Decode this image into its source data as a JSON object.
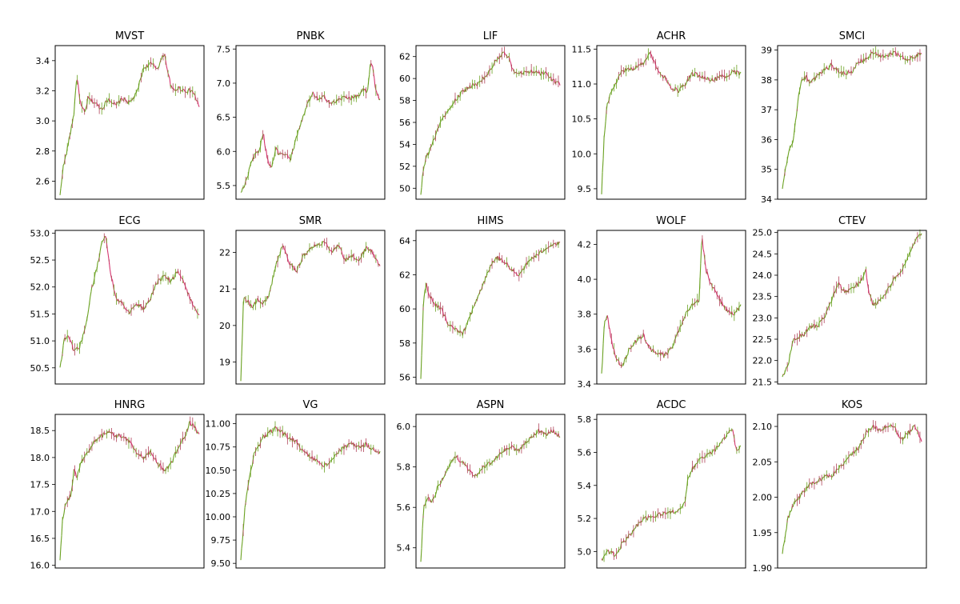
{
  "style": {
    "up_color": "#6aa121",
    "down_color": "#d4356e",
    "mid_color": "#b0435a",
    "frame_color": "#000000"
  },
  "chart_data": [
    {
      "type": "line",
      "title": "MVST",
      "ylim": [
        2.48,
        3.5
      ],
      "yticks": [
        2.6,
        2.8,
        3.0,
        3.2,
        3.4
      ],
      "tick_labels": [
        "2.6",
        "2.8",
        "3.0",
        "3.2",
        "3.4"
      ],
      "x": [
        0,
        0.02,
        0.05,
        0.08,
        0.1,
        0.12,
        0.15,
        0.18,
        0.2,
        0.25,
        0.3,
        0.35,
        0.4,
        0.45,
        0.5,
        0.55,
        0.6,
        0.65,
        0.7,
        0.75,
        0.78,
        0.8,
        0.82,
        0.85,
        0.9,
        0.95,
        1.0
      ],
      "values": [
        2.5,
        2.68,
        2.8,
        2.95,
        3.05,
        3.3,
        3.1,
        3.05,
        3.15,
        3.12,
        3.08,
        3.15,
        3.1,
        3.15,
        3.12,
        3.18,
        3.35,
        3.38,
        3.35,
        3.45,
        3.3,
        3.22,
        3.2,
        3.22,
        3.2,
        3.2,
        3.1
      ]
    },
    {
      "type": "line",
      "title": "PNBK",
      "ylim": [
        5.3,
        7.55
      ],
      "yticks": [
        5.5,
        6.0,
        6.5,
        7.0,
        7.5
      ],
      "tick_labels": [
        "5.5",
        "6.0",
        "6.5",
        "7.0",
        "7.5"
      ],
      "x": [
        0,
        0.03,
        0.07,
        0.1,
        0.13,
        0.16,
        0.19,
        0.22,
        0.25,
        0.28,
        0.32,
        0.36,
        0.4,
        0.44,
        0.48,
        0.52,
        0.56,
        0.6,
        0.65,
        0.7,
        0.75,
        0.8,
        0.85,
        0.88,
        0.91,
        0.93,
        0.95,
        0.97,
        1.0
      ],
      "values": [
        5.4,
        5.5,
        5.8,
        5.95,
        6.0,
        6.28,
        5.9,
        5.75,
        6.05,
        5.95,
        5.95,
        5.9,
        6.2,
        6.45,
        6.7,
        6.85,
        6.75,
        6.8,
        6.7,
        6.75,
        6.8,
        6.78,
        6.82,
        6.9,
        6.85,
        7.3,
        7.2,
        6.9,
        6.75
      ]
    },
    {
      "type": "line",
      "title": "LIF",
      "ylim": [
        49.0,
        63.0
      ],
      "yticks": [
        50,
        52,
        54,
        56,
        58,
        60,
        62
      ],
      "tick_labels": [
        "50",
        "52",
        "54",
        "56",
        "58",
        "60",
        "62"
      ],
      "x": [
        0,
        0.02,
        0.04,
        0.08,
        0.12,
        0.16,
        0.2,
        0.25,
        0.3,
        0.35,
        0.4,
        0.45,
        0.5,
        0.55,
        0.6,
        0.63,
        0.66,
        0.7,
        0.75,
        0.8,
        0.85,
        0.9,
        0.95,
        1.0
      ],
      "values": [
        49.5,
        52.0,
        52.8,
        54.0,
        55.2,
        56.5,
        57.2,
        58.0,
        58.8,
        59.2,
        59.5,
        60.0,
        60.8,
        61.8,
        62.3,
        62.0,
        60.8,
        60.5,
        60.5,
        60.7,
        60.4,
        60.5,
        59.8,
        59.5
      ]
    },
    {
      "type": "line",
      "title": "ACHR",
      "ylim": [
        9.35,
        11.55
      ],
      "yticks": [
        9.5,
        10.0,
        10.5,
        11.0,
        11.5
      ],
      "tick_labels": [
        "9.5",
        "10.0",
        "10.5",
        "11.0",
        "11.5"
      ],
      "x": [
        0,
        0.02,
        0.04,
        0.07,
        0.1,
        0.13,
        0.16,
        0.2,
        0.25,
        0.3,
        0.35,
        0.4,
        0.45,
        0.5,
        0.55,
        0.6,
        0.65,
        0.7,
        0.75,
        0.8,
        0.85,
        0.9,
        0.95,
        1.0
      ],
      "values": [
        9.45,
        10.3,
        10.7,
        10.9,
        11.0,
        11.15,
        11.2,
        11.2,
        11.25,
        11.3,
        11.45,
        11.2,
        11.1,
        10.95,
        10.9,
        11.0,
        11.15,
        11.12,
        11.1,
        11.05,
        11.1,
        11.12,
        11.18,
        11.15
      ]
    },
    {
      "type": "line",
      "title": "SMCI",
      "ylim": [
        34.0,
        39.15
      ],
      "yticks": [
        34,
        35,
        36,
        37,
        38,
        39
      ],
      "tick_labels": [
        "34",
        "35",
        "36",
        "37",
        "38",
        "39"
      ],
      "x": [
        0,
        0.02,
        0.05,
        0.08,
        0.1,
        0.12,
        0.14,
        0.17,
        0.2,
        0.25,
        0.3,
        0.35,
        0.4,
        0.45,
        0.5,
        0.55,
        0.6,
        0.65,
        0.7,
        0.75,
        0.8,
        0.85,
        0.9,
        0.95,
        1.0
      ],
      "values": [
        34.3,
        35.0,
        35.6,
        36.0,
        36.8,
        37.6,
        38.0,
        38.1,
        37.9,
        38.1,
        38.3,
        38.5,
        38.3,
        38.2,
        38.3,
        38.6,
        38.7,
        38.9,
        38.8,
        38.8,
        38.9,
        38.8,
        38.7,
        38.8,
        38.9
      ]
    },
    {
      "type": "line",
      "title": "ECG",
      "ylim": [
        50.2,
        53.05
      ],
      "yticks": [
        50.5,
        51.0,
        51.5,
        52.0,
        52.5,
        53.0
      ],
      "tick_labels": [
        "50.5",
        "51.0",
        "51.5",
        "52.0",
        "52.5",
        "53.0"
      ],
      "x": [
        0,
        0.03,
        0.06,
        0.1,
        0.14,
        0.18,
        0.2,
        0.22,
        0.26,
        0.3,
        0.33,
        0.36,
        0.4,
        0.45,
        0.5,
        0.55,
        0.6,
        0.65,
        0.7,
        0.75,
        0.8,
        0.85,
        0.9,
        0.95,
        1.0
      ],
      "values": [
        50.5,
        51.0,
        51.1,
        50.8,
        50.9,
        51.2,
        51.5,
        51.9,
        52.3,
        52.8,
        52.95,
        52.3,
        51.8,
        51.7,
        51.5,
        51.7,
        51.6,
        51.8,
        52.1,
        52.2,
        52.1,
        52.3,
        52.0,
        51.7,
        51.5
      ]
    },
    {
      "type": "line",
      "title": "SMR",
      "ylim": [
        18.4,
        22.6
      ],
      "yticks": [
        19,
        20,
        21,
        22
      ],
      "tick_labels": [
        "19",
        "20",
        "21",
        "22"
      ],
      "x": [
        0,
        0.02,
        0.04,
        0.08,
        0.12,
        0.16,
        0.2,
        0.25,
        0.3,
        0.35,
        0.4,
        0.45,
        0.5,
        0.55,
        0.6,
        0.65,
        0.7,
        0.75,
        0.8,
        0.85,
        0.9,
        0.95,
        1.0
      ],
      "values": [
        18.5,
        20.8,
        20.7,
        20.5,
        20.7,
        20.6,
        20.8,
        21.6,
        22.2,
        21.7,
        21.5,
        21.9,
        22.1,
        22.2,
        22.3,
        22.0,
        22.2,
        21.8,
        21.9,
        21.8,
        22.1,
        22.0,
        21.6
      ]
    },
    {
      "type": "line",
      "title": "HIMS",
      "ylim": [
        55.6,
        64.6
      ],
      "yticks": [
        56,
        58,
        60,
        62,
        64
      ],
      "tick_labels": [
        "56",
        "58",
        "60",
        "62",
        "64"
      ],
      "x": [
        0,
        0.02,
        0.04,
        0.06,
        0.1,
        0.15,
        0.2,
        0.25,
        0.3,
        0.35,
        0.4,
        0.45,
        0.5,
        0.55,
        0.6,
        0.65,
        0.7,
        0.75,
        0.8,
        0.85,
        0.9,
        0.95,
        1.0
      ],
      "values": [
        56.0,
        60.5,
        61.5,
        60.8,
        60.3,
        60.0,
        59.0,
        58.8,
        58.5,
        59.5,
        60.5,
        61.5,
        62.5,
        63.0,
        62.8,
        62.3,
        62.0,
        62.5,
        63.0,
        63.2,
        63.6,
        63.8,
        63.8
      ]
    },
    {
      "type": "line",
      "title": "WOLF",
      "ylim": [
        3.4,
        4.28
      ],
      "yticks": [
        3.4,
        3.6,
        3.8,
        4.0,
        4.2
      ],
      "tick_labels": [
        "3.4",
        "3.6",
        "3.8",
        "4.0",
        "4.2"
      ],
      "x": [
        0,
        0.02,
        0.04,
        0.07,
        0.1,
        0.15,
        0.2,
        0.25,
        0.3,
        0.35,
        0.4,
        0.45,
        0.5,
        0.55,
        0.6,
        0.65,
        0.7,
        0.72,
        0.75,
        0.8,
        0.85,
        0.9,
        0.95,
        1.0
      ],
      "values": [
        3.45,
        3.75,
        3.8,
        3.65,
        3.55,
        3.5,
        3.6,
        3.65,
        3.68,
        3.6,
        3.58,
        3.56,
        3.6,
        3.7,
        3.8,
        3.85,
        3.88,
        4.25,
        4.05,
        3.95,
        3.88,
        3.82,
        3.8,
        3.85
      ]
    },
    {
      "type": "line",
      "title": "CTEV",
      "ylim": [
        21.45,
        25.05
      ],
      "yticks": [
        21.5,
        22.0,
        22.5,
        23.0,
        23.5,
        24.0,
        24.5,
        25.0
      ],
      "tick_labels": [
        "21.5",
        "22.0",
        "22.5",
        "23.0",
        "23.5",
        "24.0",
        "24.5",
        "25.0"
      ],
      "x": [
        0,
        0.04,
        0.08,
        0.15,
        0.2,
        0.25,
        0.3,
        0.35,
        0.4,
        0.45,
        0.5,
        0.55,
        0.6,
        0.62,
        0.65,
        0.7,
        0.75,
        0.8,
        0.85,
        0.9,
        0.95,
        1.0
      ],
      "values": [
        21.6,
        21.9,
        22.5,
        22.6,
        22.8,
        22.8,
        23.0,
        23.4,
        23.8,
        23.6,
        23.7,
        23.8,
        24.1,
        23.6,
        23.3,
        23.4,
        23.6,
        23.9,
        24.1,
        24.4,
        24.8,
        25.0
      ]
    },
    {
      "type": "line",
      "title": "HNRG",
      "ylim": [
        15.95,
        18.8
      ],
      "yticks": [
        16.0,
        16.5,
        17.0,
        17.5,
        18.0,
        18.5
      ],
      "tick_labels": [
        "16.0",
        "16.5",
        "17.0",
        "17.5",
        "18.0",
        "18.5"
      ],
      "x": [
        0,
        0.02,
        0.05,
        0.08,
        0.1,
        0.12,
        0.15,
        0.2,
        0.25,
        0.3,
        0.35,
        0.4,
        0.45,
        0.5,
        0.55,
        0.6,
        0.65,
        0.7,
        0.75,
        0.8,
        0.85,
        0.9,
        0.93,
        0.96,
        1.0
      ],
      "values": [
        16.1,
        16.9,
        17.2,
        17.3,
        17.8,
        17.6,
        17.9,
        18.1,
        18.3,
        18.4,
        18.5,
        18.4,
        18.4,
        18.3,
        18.1,
        18.0,
        18.1,
        17.9,
        17.75,
        17.9,
        18.2,
        18.4,
        18.65,
        18.6,
        18.4
      ]
    },
    {
      "type": "line",
      "title": "VG",
      "ylim": [
        9.45,
        11.1
      ],
      "yticks": [
        9.5,
        9.75,
        10.0,
        10.25,
        10.5,
        10.75,
        11.0
      ],
      "tick_labels": [
        "9.50",
        "9.75",
        "10.00",
        "10.25",
        "10.50",
        "10.75",
        "11.00"
      ],
      "x": [
        0,
        0.03,
        0.06,
        0.1,
        0.13,
        0.16,
        0.2,
        0.25,
        0.3,
        0.35,
        0.4,
        0.45,
        0.5,
        0.55,
        0.6,
        0.65,
        0.7,
        0.75,
        0.8,
        0.85,
        0.9,
        0.95,
        1.0
      ],
      "values": [
        9.55,
        10.1,
        10.4,
        10.7,
        10.75,
        10.85,
        10.9,
        10.95,
        10.9,
        10.85,
        10.8,
        10.7,
        10.65,
        10.6,
        10.55,
        10.6,
        10.7,
        10.75,
        10.78,
        10.75,
        10.78,
        10.72,
        10.7
      ]
    },
    {
      "type": "line",
      "title": "ASPN",
      "ylim": [
        5.3,
        6.06
      ],
      "yticks": [
        5.4,
        5.6,
        5.8,
        6.0
      ],
      "tick_labels": [
        "5.4",
        "5.6",
        "5.8",
        "6.0"
      ],
      "x": [
        0,
        0.02,
        0.05,
        0.08,
        0.12,
        0.16,
        0.2,
        0.25,
        0.3,
        0.35,
        0.4,
        0.45,
        0.5,
        0.55,
        0.6,
        0.65,
        0.7,
        0.75,
        0.8,
        0.85,
        0.9,
        0.95,
        1.0
      ],
      "values": [
        5.32,
        5.6,
        5.65,
        5.62,
        5.7,
        5.75,
        5.8,
        5.85,
        5.82,
        5.78,
        5.75,
        5.8,
        5.82,
        5.85,
        5.88,
        5.9,
        5.88,
        5.92,
        5.95,
        5.98,
        5.96,
        5.98,
        5.95
      ]
    },
    {
      "type": "line",
      "title": "ACDC",
      "ylim": [
        4.9,
        5.83
      ],
      "yticks": [
        5.0,
        5.2,
        5.4,
        5.6,
        5.8
      ],
      "tick_labels": [
        "5.0",
        "5.2",
        "5.4",
        "5.6",
        "5.8"
      ],
      "x": [
        0,
        0.05,
        0.1,
        0.15,
        0.2,
        0.25,
        0.3,
        0.35,
        0.4,
        0.45,
        0.5,
        0.55,
        0.6,
        0.62,
        0.65,
        0.7,
        0.75,
        0.8,
        0.85,
        0.9,
        0.94,
        0.97,
        1.0
      ],
      "values": [
        4.95,
        5.0,
        4.98,
        5.05,
        5.1,
        5.15,
        5.2,
        5.2,
        5.22,
        5.23,
        5.24,
        5.25,
        5.3,
        5.45,
        5.5,
        5.55,
        5.58,
        5.6,
        5.65,
        5.7,
        5.75,
        5.6,
        5.65
      ]
    },
    {
      "type": "line",
      "title": "KOS",
      "ylim": [
        1.9,
        2.117
      ],
      "yticks": [
        1.9,
        1.95,
        2.0,
        2.05,
        2.1
      ],
      "tick_labels": [
        "1.90",
        "1.95",
        "2.00",
        "2.05",
        "2.10"
      ],
      "x": [
        0,
        0.04,
        0.08,
        0.12,
        0.16,
        0.2,
        0.25,
        0.3,
        0.35,
        0.4,
        0.45,
        0.5,
        0.55,
        0.6,
        0.65,
        0.7,
        0.75,
        0.8,
        0.85,
        0.9,
        0.95,
        1.0
      ],
      "values": [
        1.92,
        1.97,
        1.99,
        2.0,
        2.01,
        2.02,
        2.02,
        2.03,
        2.03,
        2.04,
        2.05,
        2.06,
        2.07,
        2.09,
        2.1,
        2.095,
        2.1,
        2.1,
        2.08,
        2.09,
        2.1,
        2.08
      ]
    }
  ]
}
